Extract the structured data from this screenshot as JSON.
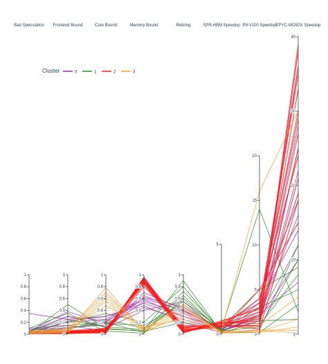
{
  "chart_data": {
    "type": "parallel-coordinates",
    "dimensions": [
      {
        "name": "Bad Speculation",
        "range": [
          0,
          1
        ],
        "ticks": [
          0,
          0.2,
          0.4,
          0.6,
          0.8,
          1
        ]
      },
      {
        "name": "Frontend Bound",
        "range": [
          0,
          1
        ],
        "ticks": [
          0,
          0.2,
          0.4,
          0.6,
          0.8,
          1
        ]
      },
      {
        "name": "Core Bound",
        "range": [
          0,
          1
        ],
        "ticks": [
          0,
          0.2,
          0.4,
          0.6,
          0.8,
          1
        ]
      },
      {
        "name": "Memory Bound",
        "range": [
          0,
          1
        ],
        "ticks": [
          0,
          0.2,
          0.4,
          0.6,
          0.8,
          1
        ]
      },
      {
        "name": "Retiring",
        "range": [
          0,
          1
        ],
        "ticks": [
          0,
          0.2,
          0.4,
          0.6,
          0.8,
          1
        ]
      },
      {
        "name": "SPR-HBM Speedup",
        "range": [
          0,
          5
        ],
        "ticks": [
          0,
          5
        ]
      },
      {
        "name": "P9-V100 Speedup",
        "range": [
          0,
          20
        ],
        "ticks": [
          0,
          5,
          10,
          15,
          20
        ]
      },
      {
        "name": "EPYC-MI250X Speedup",
        "range": [
          0,
          40
        ],
        "ticks": [
          0,
          10,
          20,
          30,
          40
        ]
      }
    ],
    "legend": {
      "title": "Cluster",
      "placement": "top-left",
      "entries": [
        {
          "label": "0",
          "color": "#9c27b0"
        },
        {
          "label": "1",
          "color": "#2e8b22"
        },
        {
          "label": "2",
          "color": "#ff1a1a"
        },
        {
          "label": "3",
          "color": "#ff9f2e"
        }
      ]
    },
    "series": [
      {
        "cluster": "0",
        "values": [
          0.05,
          0.3,
          0.12,
          0.55,
          0.35,
          0.2,
          1.5,
          22
        ]
      },
      {
        "cluster": "0",
        "values": [
          0.02,
          0.2,
          0.25,
          0.6,
          0.4,
          0.3,
          2.5,
          28
        ]
      },
      {
        "cluster": "0",
        "values": [
          0.35,
          0.25,
          0.3,
          0.48,
          0.2,
          0.1,
          0.5,
          12
        ]
      },
      {
        "cluster": "0",
        "values": [
          0.05,
          0.38,
          0.18,
          0.45,
          0.25,
          0.25,
          3,
          36
        ]
      },
      {
        "cluster": "0",
        "values": [
          0.1,
          0.15,
          0.05,
          0.7,
          0.42,
          0.15,
          2,
          16
        ]
      },
      {
        "cluster": "0",
        "values": [
          0.02,
          0.22,
          0.3,
          0.52,
          0.3,
          0.35,
          4,
          18
        ]
      },
      {
        "cluster": "0",
        "values": [
          0.08,
          0.1,
          0.2,
          0.65,
          0.38,
          0.4,
          1,
          25
        ]
      },
      {
        "cluster": "0",
        "values": [
          0.03,
          0.05,
          0.1,
          0.4,
          0.55,
          0.28,
          3.5,
          14
        ]
      },
      {
        "cluster": "0",
        "values": [
          0.04,
          0.3,
          0.22,
          0.58,
          0.3,
          0.18,
          2.2,
          7
        ]
      },
      {
        "cluster": "0",
        "values": [
          0.02,
          0.12,
          0.15,
          0.62,
          0.46,
          0.22,
          1.8,
          10
        ]
      },
      {
        "cluster": "1",
        "values": [
          0.02,
          0.5,
          0.1,
          0.05,
          0.2,
          0.3,
          14,
          3
        ]
      },
      {
        "cluster": "1",
        "values": [
          0.05,
          0.2,
          0.35,
          0.2,
          0.8,
          0.1,
          1,
          8
        ]
      },
      {
        "cluster": "1",
        "values": [
          0.1,
          0.35,
          0.05,
          0.02,
          0.6,
          0.2,
          2,
          12
        ]
      },
      {
        "cluster": "1",
        "values": [
          0.02,
          0.08,
          0.25,
          0.1,
          0.65,
          0.15,
          5,
          9
        ]
      },
      {
        "cluster": "1",
        "values": [
          0.03,
          0.15,
          0.2,
          0.03,
          0.72,
          0.25,
          3,
          6
        ]
      },
      {
        "cluster": "1",
        "values": [
          0.05,
          0.25,
          0.12,
          0.08,
          0.55,
          0.05,
          1.5,
          2
        ]
      },
      {
        "cluster": "1",
        "values": [
          0.02,
          0.1,
          0.18,
          0.15,
          0.5,
          0.18,
          0.8,
          10
        ]
      },
      {
        "cluster": "1",
        "values": [
          0.04,
          0.04,
          0.08,
          0.06,
          0.9,
          0.12,
          0.2,
          4
        ]
      },
      {
        "cluster": "2",
        "values": [
          0.02,
          0.02,
          0.05,
          0.95,
          0.05,
          0.5,
          1,
          38
        ]
      },
      {
        "cluster": "2",
        "values": [
          0.01,
          0.03,
          0.08,
          0.9,
          0.1,
          0.6,
          1.5,
          36
        ]
      },
      {
        "cluster": "2",
        "values": [
          0.02,
          0.01,
          0.03,
          0.92,
          0.08,
          0.45,
          2,
          33
        ]
      },
      {
        "cluster": "2",
        "values": [
          0.01,
          0.04,
          0.1,
          0.85,
          0.02,
          0.7,
          3,
          30
        ]
      },
      {
        "cluster": "2",
        "values": [
          0.03,
          0.02,
          0.06,
          0.88,
          0.12,
          0.55,
          2.5,
          27
        ]
      },
      {
        "cluster": "2",
        "values": [
          0.01,
          0.05,
          0.04,
          0.8,
          0.15,
          0.4,
          4,
          24
        ]
      },
      {
        "cluster": "2",
        "values": [
          0.02,
          0.03,
          0.07,
          0.93,
          0.06,
          0.65,
          1.2,
          21
        ]
      },
      {
        "cluster": "2",
        "values": [
          0.01,
          0.02,
          0.02,
          0.96,
          0.04,
          0.5,
          0.6,
          18
        ]
      },
      {
        "cluster": "2",
        "values": [
          0.02,
          0.06,
          0.09,
          0.87,
          0.09,
          0.35,
          5,
          15
        ]
      },
      {
        "cluster": "2",
        "values": [
          0.01,
          0.01,
          0.05,
          0.9,
          0.03,
          0.75,
          2.8,
          35
        ]
      },
      {
        "cluster": "2",
        "values": [
          0.02,
          0.03,
          0.03,
          0.84,
          0.11,
          0.58,
          3.5,
          29
        ]
      },
      {
        "cluster": "2",
        "values": [
          0.01,
          0.04,
          0.06,
          0.91,
          0.07,
          0.48,
          0.9,
          39
        ]
      },
      {
        "cluster": "2",
        "values": [
          0.02,
          0.02,
          0.08,
          0.86,
          0.05,
          0.62,
          1.7,
          25
        ]
      },
      {
        "cluster": "2",
        "values": [
          0.01,
          0.05,
          0.04,
          0.94,
          0.13,
          0.42,
          2.2,
          19
        ]
      },
      {
        "cluster": "3",
        "values": [
          0.02,
          0.05,
          0.78,
          0.05,
          0.3,
          0.2,
          16,
          30
        ]
      },
      {
        "cluster": "3",
        "values": [
          0.04,
          0.08,
          0.65,
          0.1,
          0.45,
          0.1,
          1,
          5
        ]
      },
      {
        "cluster": "3",
        "values": [
          0.02,
          0.03,
          0.55,
          0.02,
          0.38,
          0.15,
          0.3,
          2
        ]
      },
      {
        "cluster": "3",
        "values": [
          0.05,
          0.1,
          0.7,
          0.08,
          0.5,
          0.05,
          0.2,
          1
        ]
      },
      {
        "cluster": "3",
        "values": [
          0.03,
          0.06,
          0.48,
          0.12,
          0.25,
          0.08,
          0.5,
          0.5
        ]
      },
      {
        "cluster": "3",
        "values": [
          0.02,
          0.04,
          0.6,
          0.06,
          0.42,
          0.12,
          0.4,
          0.2
        ]
      }
    ]
  }
}
